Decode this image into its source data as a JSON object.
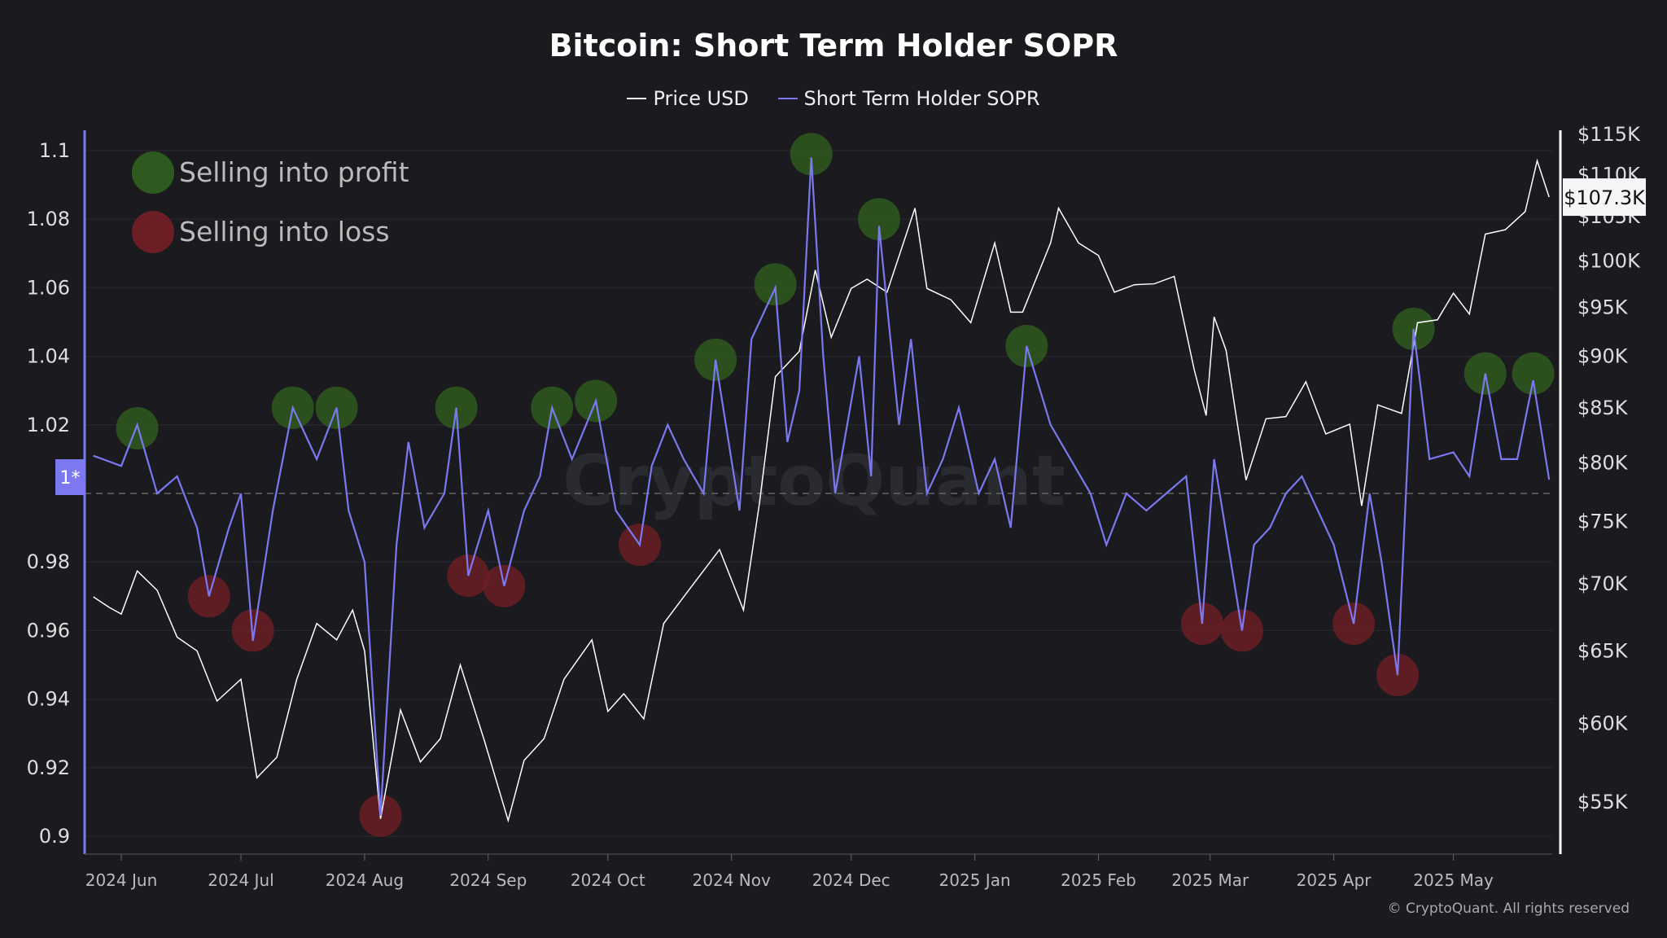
{
  "chart_data": {
    "type": "line",
    "title": "Bitcoin: Short Term Holder SOPR",
    "legend_position": "top",
    "grid": true,
    "watermark": "CryptoQuant",
    "copyright": "© CryptoQuant. All rights reserved",
    "colors": {
      "price": "#ffffff",
      "sopr": "#7b78f0",
      "profit": "#2f5a1f",
      "loss": "#6b1f24",
      "background": "#1a1a1f"
    },
    "x_ticks": [
      "2024 Jun",
      "2024 Jul",
      "2024 Aug",
      "2024 Sep",
      "2024 Oct",
      "2024 Nov",
      "2024 Dec",
      "2025 Jan",
      "2025 Feb",
      "2025 Mar",
      "2025 Apr",
      "2025 May"
    ],
    "x_tick_dates": [
      "2024-06-01",
      "2024-07-01",
      "2024-08-01",
      "2024-09-01",
      "2024-10-01",
      "2024-11-01",
      "2024-12-01",
      "2025-01-01",
      "2025-02-01",
      "2025-03-01",
      "2025-04-01",
      "2025-05-01"
    ],
    "y_left": {
      "ticks": [
        "1.1",
        "1.08",
        "1.06",
        "1.04",
        "1.02",
        "1*",
        "0.98",
        "0.96",
        "0.94",
        "0.92",
        "0.9"
      ],
      "tick_values": [
        1.1,
        1.08,
        1.06,
        1.04,
        1.02,
        1.0,
        0.98,
        0.96,
        0.94,
        0.92,
        0.9
      ],
      "range": [
        0.9,
        1.1
      ],
      "reference_line": 1.0
    },
    "y_right": {
      "scale": "log",
      "ticks": [
        "$115K",
        "$110K",
        "$105K",
        "$100K",
        "$95K",
        "$90K",
        "$85K",
        "$80K",
        "$75K",
        "$70K",
        "$65K",
        "$60K",
        "$55K"
      ],
      "tick_values": [
        115000,
        110000,
        105000,
        100000,
        95000,
        90000,
        85000,
        80000,
        75000,
        70000,
        65000,
        60000,
        55000
      ],
      "current_label": "$107.3K",
      "current_value": 107300
    },
    "series": [
      {
        "name": "Price USD",
        "axis": "right",
        "x": [
          "2024-05-25",
          "2024-05-29",
          "2024-06-01",
          "2024-06-05",
          "2024-06-10",
          "2024-06-15",
          "2024-06-20",
          "2024-06-25",
          "2024-07-01",
          "2024-07-05",
          "2024-07-10",
          "2024-07-15",
          "2024-07-20",
          "2024-07-25",
          "2024-07-29",
          "2024-08-01",
          "2024-08-05",
          "2024-08-10",
          "2024-08-15",
          "2024-08-20",
          "2024-08-25",
          "2024-08-31",
          "2024-09-06",
          "2024-09-10",
          "2024-09-15",
          "2024-09-20",
          "2024-09-27",
          "2024-10-01",
          "2024-10-05",
          "2024-10-10",
          "2024-10-15",
          "2024-10-20",
          "2024-10-29",
          "2024-11-04",
          "2024-11-08",
          "2024-11-12",
          "2024-11-18",
          "2024-11-22",
          "2024-11-26",
          "2024-12-01",
          "2024-12-05",
          "2024-12-10",
          "2024-12-17",
          "2024-12-20",
          "2024-12-26",
          "2024-12-31",
          "2025-01-06",
          "2025-01-10",
          "2025-01-13",
          "2025-01-20",
          "2025-01-22",
          "2025-01-27",
          "2025-02-01",
          "2025-02-05",
          "2025-02-10",
          "2025-02-15",
          "2025-02-20",
          "2025-02-25",
          "2025-02-28",
          "2025-03-02",
          "2025-03-05",
          "2025-03-10",
          "2025-03-15",
          "2025-03-20",
          "2025-03-25",
          "2025-03-30",
          "2025-04-05",
          "2025-04-08",
          "2025-04-12",
          "2025-04-18",
          "2025-04-22",
          "2025-04-27",
          "2025-05-01",
          "2025-05-05",
          "2025-05-09",
          "2025-05-14",
          "2025-05-19",
          "2025-05-22",
          "2025-05-25"
        ],
        "values": [
          69000,
          68200,
          67700,
          71000,
          69500,
          66000,
          65000,
          61500,
          63000,
          56500,
          57800,
          63000,
          67000,
          65800,
          68000,
          65000,
          54000,
          60900,
          57500,
          59000,
          64000,
          58900,
          53900,
          57600,
          59000,
          63000,
          65800,
          60800,
          62000,
          60300,
          67000,
          69000,
          72700,
          68000,
          76500,
          88000,
          90500,
          99000,
          91900,
          97000,
          98000,
          96600,
          106000,
          97000,
          95800,
          93400,
          102000,
          94500,
          94500,
          102000,
          106000,
          102000,
          100600,
          96600,
          97400,
          97500,
          98300,
          88700,
          84300,
          94000,
          90600,
          78500,
          84000,
          84200,
          87500,
          82600,
          83500,
          76300,
          85300,
          84500,
          93400,
          93700,
          96500,
          94300,
          103000,
          103500,
          105600,
          111700,
          107300
        ]
      },
      {
        "name": "Short Term Holder SOPR",
        "axis": "left",
        "x": [
          "2024-05-25",
          "2024-06-01",
          "2024-06-05",
          "2024-06-10",
          "2024-06-15",
          "2024-06-20",
          "2024-06-23",
          "2024-06-28",
          "2024-07-01",
          "2024-07-04",
          "2024-07-09",
          "2024-07-14",
          "2024-07-20",
          "2024-07-25",
          "2024-07-28",
          "2024-08-01",
          "2024-08-05",
          "2024-08-09",
          "2024-08-12",
          "2024-08-16",
          "2024-08-21",
          "2024-08-24",
          "2024-08-27",
          "2024-09-01",
          "2024-09-05",
          "2024-09-10",
          "2024-09-14",
          "2024-09-17",
          "2024-09-22",
          "2024-09-28",
          "2024-10-03",
          "2024-10-09",
          "2024-10-12",
          "2024-10-16",
          "2024-10-20",
          "2024-10-25",
          "2024-10-28",
          "2024-11-03",
          "2024-11-06",
          "2024-11-12",
          "2024-11-15",
          "2024-11-18",
          "2024-11-21",
          "2024-11-24",
          "2024-11-27",
          "2024-11-30",
          "2024-12-03",
          "2024-12-06",
          "2024-12-08",
          "2024-12-13",
          "2024-12-16",
          "2024-12-20",
          "2024-12-24",
          "2024-12-28",
          "2025-01-02",
          "2025-01-06",
          "2025-01-10",
          "2025-01-14",
          "2025-01-20",
          "2025-01-25",
          "2025-01-30",
          "2025-02-03",
          "2025-02-08",
          "2025-02-13",
          "2025-02-18",
          "2025-02-23",
          "2025-02-27",
          "2025-03-02",
          "2025-03-09",
          "2025-03-12",
          "2025-03-16",
          "2025-03-20",
          "2025-03-24",
          "2025-03-28",
          "2025-04-01",
          "2025-04-06",
          "2025-04-10",
          "2025-04-13",
          "2025-04-17",
          "2025-04-21",
          "2025-04-25",
          "2025-05-01",
          "2025-05-05",
          "2025-05-09",
          "2025-05-13",
          "2025-05-17",
          "2025-05-21",
          "2025-05-25"
        ],
        "values": [
          1.011,
          1.008,
          1.02,
          1.0,
          1.005,
          0.99,
          0.97,
          0.99,
          1.0,
          0.957,
          0.995,
          1.025,
          1.01,
          1.025,
          0.995,
          0.98,
          0.906,
          0.985,
          1.015,
          0.99,
          1.0,
          1.025,
          0.976,
          0.995,
          0.973,
          0.995,
          1.005,
          1.025,
          1.01,
          1.027,
          0.995,
          0.985,
          1.008,
          1.02,
          1.01,
          1.0,
          1.039,
          0.995,
          1.045,
          1.06,
          1.015,
          1.03,
          1.098,
          1.04,
          1.0,
          1.02,
          1.04,
          1.005,
          1.078,
          1.02,
          1.045,
          1.0,
          1.01,
          1.025,
          1.0,
          1.01,
          0.99,
          1.043,
          1.02,
          1.01,
          1.0,
          0.985,
          1.0,
          0.995,
          1.0,
          1.005,
          0.962,
          1.01,
          0.96,
          0.985,
          0.99,
          1.0,
          1.005,
          0.995,
          0.985,
          0.962,
          1.0,
          0.98,
          0.947,
          1.048,
          1.01,
          1.012,
          1.005,
          1.035,
          1.01,
          1.01,
          1.033,
          1.004
        ]
      }
    ],
    "annotations": {
      "legend": [
        {
          "label": "Selling into profit",
          "kind": "profit"
        },
        {
          "label": "Selling into loss",
          "kind": "loss"
        }
      ],
      "profit_markers": [
        {
          "x": "2024-06-05",
          "y": 1.019
        },
        {
          "x": "2024-07-14",
          "y": 1.025
        },
        {
          "x": "2024-07-25",
          "y": 1.025
        },
        {
          "x": "2024-08-24",
          "y": 1.025
        },
        {
          "x": "2024-09-17",
          "y": 1.025
        },
        {
          "x": "2024-09-28",
          "y": 1.027
        },
        {
          "x": "2024-10-28",
          "y": 1.039
        },
        {
          "x": "2024-11-12",
          "y": 1.061
        },
        {
          "x": "2024-11-21",
          "y": 1.099
        },
        {
          "x": "2024-12-08",
          "y": 1.08
        },
        {
          "x": "2025-01-14",
          "y": 1.043
        },
        {
          "x": "2025-04-21",
          "y": 1.048
        },
        {
          "x": "2025-05-09",
          "y": 1.035
        },
        {
          "x": "2025-05-21",
          "y": 1.035
        }
      ],
      "loss_markers": [
        {
          "x": "2024-06-23",
          "y": 0.97
        },
        {
          "x": "2024-07-04",
          "y": 0.96
        },
        {
          "x": "2024-08-05",
          "y": 0.906
        },
        {
          "x": "2024-08-27",
          "y": 0.976
        },
        {
          "x": "2024-09-05",
          "y": 0.973
        },
        {
          "x": "2024-10-09",
          "y": 0.985
        },
        {
          "x": "2025-02-27",
          "y": 0.962
        },
        {
          "x": "2025-03-09",
          "y": 0.96
        },
        {
          "x": "2025-04-06",
          "y": 0.962
        },
        {
          "x": "2025-04-17",
          "y": 0.947
        }
      ]
    }
  }
}
